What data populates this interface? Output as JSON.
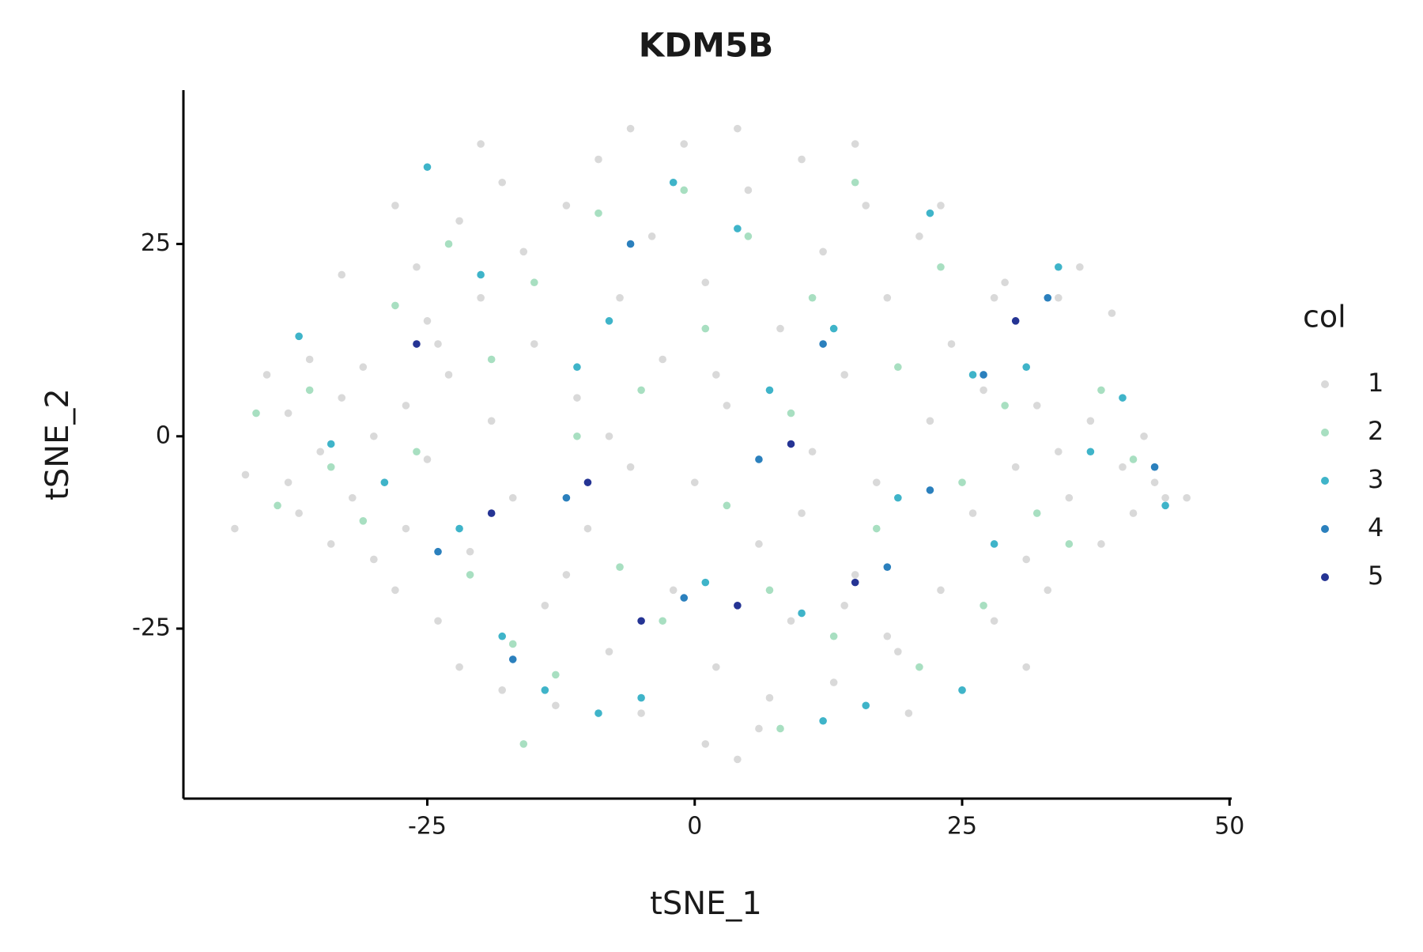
{
  "chart_data": {
    "type": "scatter",
    "title": "KDM5B",
    "x_label": "tSNE_1",
    "y_label": "tSNE_2",
    "legend_title": "col",
    "legend_position": "right",
    "grid": false,
    "xlim": [
      -47.8,
      50.2
    ],
    "ylim": [
      -47.1,
      45
    ],
    "xticks": [
      -25,
      0,
      25,
      50
    ],
    "yticks": [
      -25,
      0,
      25
    ],
    "series": [
      {
        "name": "1",
        "color": "#d9d9d9",
        "x": [
          -43,
          -42,
          -40,
          -38,
          -37,
          -36,
          -35,
          -34,
          -33,
          -32,
          -31,
          -30,
          -30,
          -29,
          -28,
          -27,
          -27,
          -26,
          -25,
          -25,
          -24,
          -23,
          -22,
          -22,
          -21,
          -20,
          -19,
          -18,
          -18,
          -17,
          -16,
          -15,
          -14,
          -13,
          -12,
          -11,
          -10,
          -9,
          -8,
          -7,
          -6,
          -5,
          -4,
          -3,
          -2,
          -1,
          0,
          1,
          1,
          2,
          3,
          4,
          5,
          6,
          7,
          8,
          9,
          10,
          11,
          12,
          13,
          14,
          15,
          16,
          17,
          18,
          19,
          20,
          21,
          22,
          23,
          24,
          25,
          26,
          27,
          28,
          29,
          30,
          31,
          32,
          33,
          34,
          35,
          36,
          37,
          38,
          39,
          40,
          41,
          42,
          43,
          44,
          46,
          -33,
          -28,
          -20,
          -6,
          4,
          15,
          23,
          28,
          31,
          -38,
          -24,
          -12,
          2,
          10,
          18,
          -8,
          6,
          14,
          34
        ],
        "y": [
          -12,
          -5,
          8,
          3,
          -10,
          10,
          -2,
          -14,
          5,
          -8,
          9,
          -16,
          0,
          -6,
          -20,
          4,
          -12,
          22,
          15,
          -3,
          -24,
          8,
          -30,
          28,
          -15,
          18,
          2,
          -33,
          33,
          -8,
          24,
          12,
          -22,
          -35,
          30,
          5,
          -12,
          36,
          -28,
          18,
          -4,
          -36,
          26,
          10,
          -20,
          38,
          -6,
          -40,
          20,
          -30,
          4,
          -42,
          32,
          -14,
          -34,
          14,
          -24,
          36,
          -2,
          24,
          -32,
          8,
          -18,
          30,
          -6,
          18,
          -28,
          -36,
          26,
          2,
          -20,
          12,
          -33,
          -10,
          6,
          -24,
          20,
          -4,
          -16,
          4,
          -20,
          18,
          -8,
          22,
          2,
          -14,
          16,
          -4,
          -10,
          0,
          -6,
          -8,
          -8,
          21,
          30,
          38,
          40,
          40,
          38,
          30,
          18,
          -30,
          -6,
          12,
          -18,
          8,
          -10,
          -26,
          0,
          -38,
          -22,
          -2
        ]
      },
      {
        "name": "2",
        "color": "#a8dfc1",
        "x": [
          -41,
          -39,
          -36,
          -34,
          -31,
          -28,
          -26,
          -23,
          -21,
          -19,
          -17,
          -15,
          -13,
          -11,
          -9,
          -7,
          -5,
          -3,
          -1,
          1,
          3,
          5,
          7,
          9,
          11,
          13,
          15,
          17,
          19,
          21,
          23,
          25,
          27,
          29,
          32,
          35,
          38,
          41,
          -16,
          8
        ],
        "y": [
          3,
          -9,
          6,
          -4,
          -11,
          17,
          -2,
          25,
          -18,
          10,
          -27,
          20,
          -31,
          0,
          29,
          -17,
          6,
          -24,
          32,
          14,
          -9,
          26,
          -20,
          3,
          18,
          -26,
          33,
          -12,
          9,
          -30,
          22,
          -6,
          -22,
          4,
          -10,
          -14,
          6,
          -3,
          -40,
          -38
        ]
      },
      {
        "name": "3",
        "color": "#3fb4c9",
        "x": [
          -37,
          -34,
          -29,
          -25,
          -22,
          -20,
          -18,
          -14,
          -11,
          -8,
          -5,
          -2,
          1,
          4,
          7,
          10,
          13,
          16,
          19,
          22,
          25,
          28,
          31,
          34,
          37,
          40,
          44,
          -9,
          12,
          26
        ],
        "y": [
          13,
          -1,
          -6,
          35,
          -12,
          21,
          -26,
          -33,
          9,
          15,
          -34,
          33,
          -19,
          27,
          6,
          -23,
          14,
          -35,
          -8,
          29,
          -33,
          -14,
          9,
          22,
          -2,
          5,
          -9,
          -36,
          -37,
          8
        ]
      },
      {
        "name": "4",
        "color": "#2b80bd",
        "x": [
          -24,
          -17,
          -12,
          -6,
          -1,
          6,
          12,
          18,
          22,
          27,
          33,
          43
        ],
        "y": [
          -15,
          -29,
          -8,
          25,
          -21,
          -3,
          12,
          -17,
          -7,
          8,
          18,
          -4
        ]
      },
      {
        "name": "5",
        "color": "#253494",
        "x": [
          -26,
          -19,
          -10,
          -5,
          4,
          9,
          15,
          30
        ],
        "y": [
          12,
          -10,
          -6,
          -24,
          -22,
          -1,
          -19,
          15
        ]
      }
    ]
  }
}
